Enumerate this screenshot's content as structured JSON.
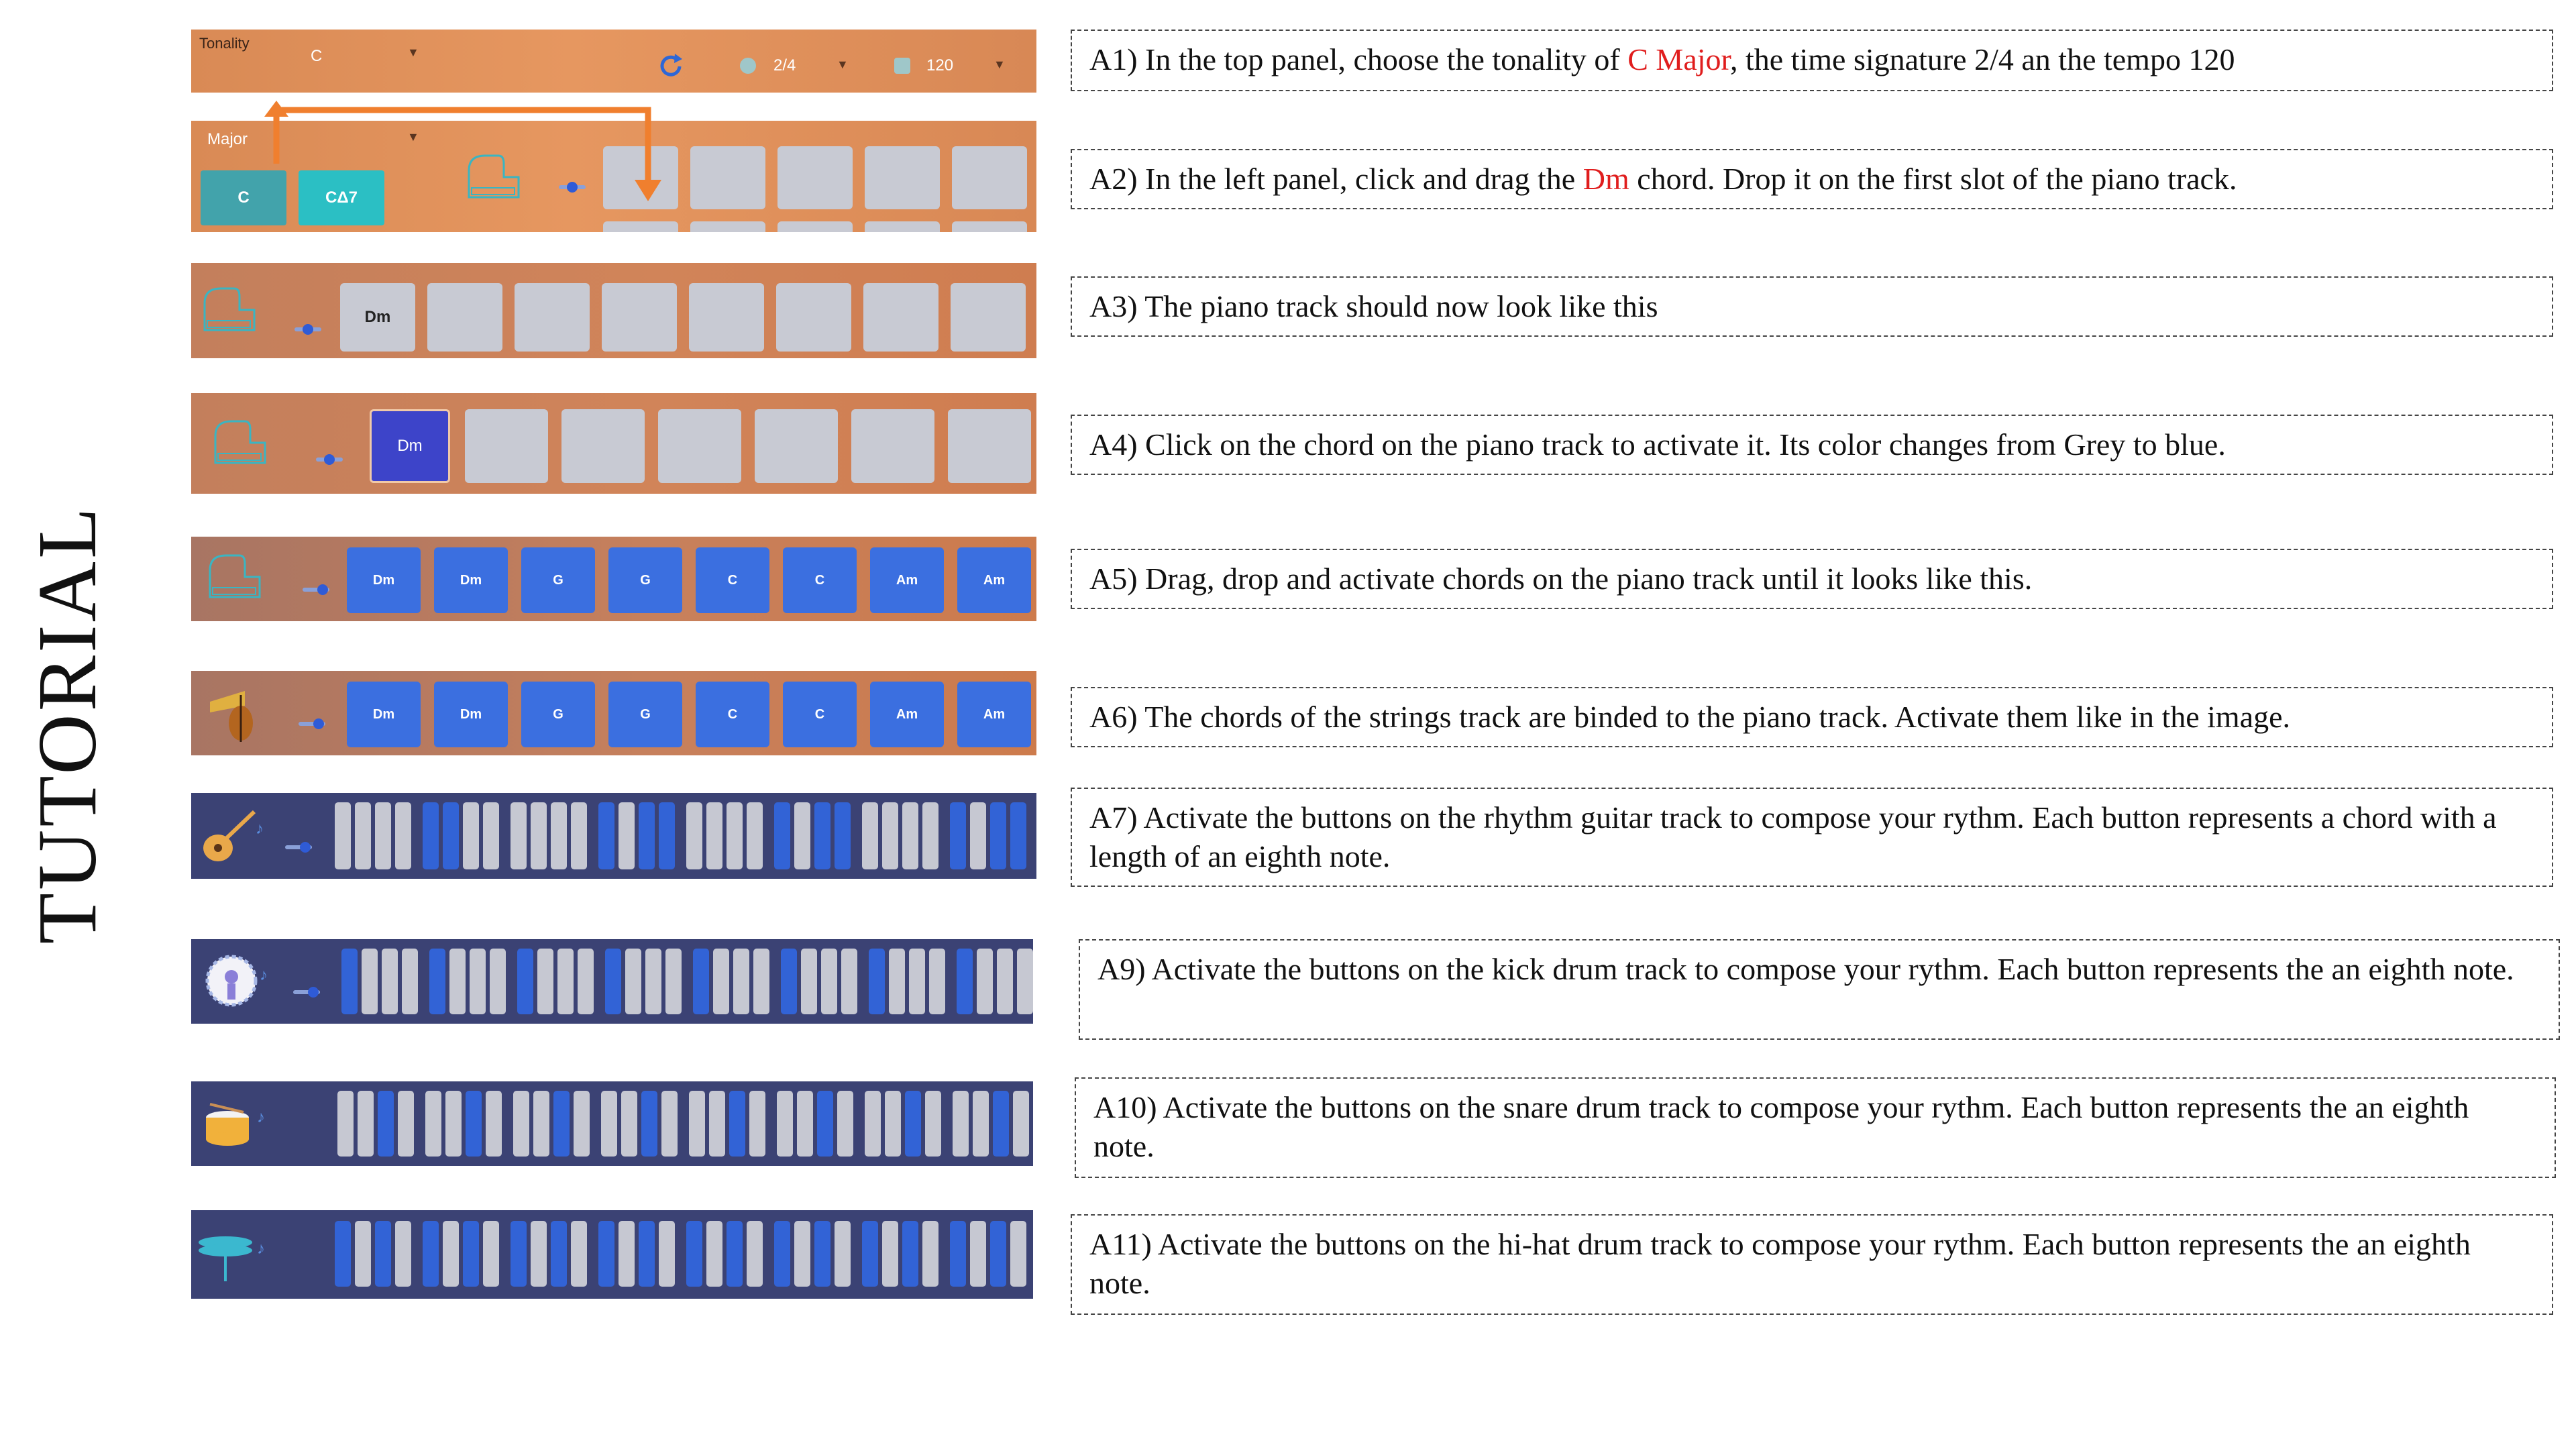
{
  "heading": "TUTORIAL",
  "top_panel": {
    "tonality_label": "Tonality",
    "tonality_value": "C",
    "time_signature": "2/4",
    "tempo": "120"
  },
  "chord_panel": {
    "mode": "Major",
    "chords": [
      "C",
      "CΔ7"
    ]
  },
  "piano_step3_chord": "Dm",
  "piano_step4_chord": "Dm",
  "piano_chords": [
    "Dm",
    "Dm",
    "G",
    "G",
    "C",
    "C",
    "Am",
    "Am"
  ],
  "strings_chords": [
    "Dm",
    "Dm",
    "G",
    "G",
    "C",
    "C",
    "Am",
    "Am"
  ],
  "steps": [
    {
      "pre": "A1) In the top panel, choose the tonality of ",
      "red": "C Major",
      "post": ", the time signature 2/4 an the tempo 120"
    },
    {
      "pre": "A2) In the left panel, click and drag the ",
      "red": "Dm",
      "post": " chord. Drop it on the first slot of the piano track."
    },
    {
      "pre": "A3) The piano track should now look like this",
      "red": "",
      "post": ""
    },
    {
      "pre": "A4) Click on the chord on the piano track to activate it. Its color changes from Grey to blue.",
      "red": "",
      "post": ""
    },
    {
      "pre": "A5) Drag, drop and activate chords on the piano track until it looks like this.",
      "red": "",
      "post": ""
    },
    {
      "pre": "A6) The chords of the strings track are binded to the piano track. Activate them like in the image.",
      "red": "",
      "post": ""
    },
    {
      "pre": "A7) Activate the buttons on the rhythm guitar track to compose your rythm. Each button represents a chord with a length of an eighth note.",
      "red": "",
      "post": ""
    },
    {
      "pre": "A9) Activate the buttons on the kick drum track to compose your rythm. Each button represents the an eighth note.",
      "red": "",
      "post": ""
    },
    {
      "pre": "A10) Activate the buttons on the snare drum track to compose your rythm. Each button represents the an eighth note.",
      "red": "",
      "post": ""
    },
    {
      "pre": "A11) Activate the buttons on the hi-hat drum track to compose your rythm. Each button represents the an eighth note.",
      "red": "",
      "post": ""
    }
  ],
  "rhythm_patterns": {
    "guitar": [
      0,
      0,
      0,
      0,
      1,
      1,
      0,
      0,
      0,
      0,
      0,
      0,
      1,
      0,
      1,
      1,
      0,
      0,
      0,
      0,
      1,
      0,
      1,
      1,
      0,
      0,
      0,
      0,
      1,
      0,
      1,
      1
    ],
    "kick": [
      1,
      0,
      0,
      0,
      1,
      0,
      0,
      0,
      1,
      0,
      0,
      0,
      1,
      0,
      0,
      0,
      1,
      0,
      0,
      0,
      1,
      0,
      0,
      0,
      1,
      0,
      0,
      0,
      1,
      0,
      0,
      0
    ],
    "snare": [
      0,
      0,
      1,
      0,
      0,
      0,
      1,
      0,
      0,
      0,
      1,
      0,
      0,
      0,
      1,
      0,
      0,
      0,
      1,
      0,
      0,
      0,
      1,
      0,
      0,
      0,
      1,
      0,
      0,
      0,
      1,
      0
    ],
    "hihat": [
      1,
      0,
      1,
      0,
      1,
      0,
      1,
      0,
      1,
      0,
      1,
      0,
      1,
      0,
      1,
      0,
      1,
      0,
      1,
      0,
      1,
      0,
      1,
      0,
      1,
      0,
      1,
      0,
      1,
      0,
      1,
      0
    ]
  },
  "colors": {
    "chord_active": "#3b6fe0",
    "step4_active": "#3d44c9",
    "teal": "#25b9c2",
    "arrow": "#f07f2e",
    "track_navy": "#3b4274"
  },
  "icons": {
    "refresh": "refresh-icon",
    "piano": "piano-icon",
    "strings": "strings-icon",
    "guitar": "guitar-icon",
    "kick": "kick-drum-icon",
    "snare": "snare-drum-icon",
    "hihat": "hihat-icon"
  }
}
